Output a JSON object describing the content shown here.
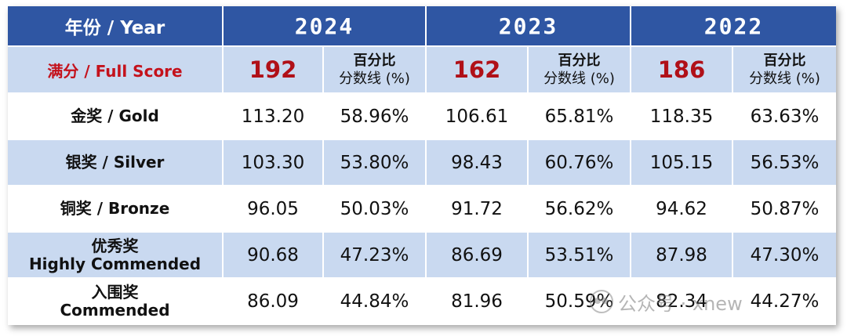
{
  "header": {
    "label": "年份 / Year",
    "years": [
      "2024",
      "2023",
      "2022"
    ]
  },
  "full_score": {
    "label": "满分 / Full Score",
    "values": [
      "192",
      "162",
      "186"
    ],
    "pct_line1": "百分比",
    "pct_line2": "分数线 (%)"
  },
  "rows": [
    {
      "label_1": "金奖 / Gold",
      "label_2": "",
      "cells": [
        "113.20",
        "58.96%",
        "106.61",
        "65.81%",
        "118.35",
        "63.63%"
      ]
    },
    {
      "label_1": "银奖 / Silver",
      "label_2": "",
      "cells": [
        "103.30",
        "53.80%",
        "98.43",
        "60.76%",
        "105.15",
        "56.53%"
      ]
    },
    {
      "label_1": "铜奖 / Bronze",
      "label_2": "",
      "cells": [
        "96.05",
        "50.03%",
        "91.72",
        "56.62%",
        "94.62",
        "50.87%"
      ]
    },
    {
      "label_1": "优秀奖",
      "label_2": "Highly Commended",
      "cells": [
        "90.68",
        "47.23%",
        "86.69",
        "53.51%",
        "87.98",
        "47.30%"
      ]
    },
    {
      "label_1": "入围奖",
      "label_2": "Commended",
      "cells": [
        "86.09",
        "44.84%",
        "81.96",
        "50.59%",
        "82.34",
        "44.27%"
      ]
    }
  ],
  "watermark": {
    "text": "公众号 · xnew",
    "icon": "wechat-icon"
  },
  "colors": {
    "header_bg": "#2f56a3",
    "band_bg": "#c9d9f0",
    "score_red": "#c4121c"
  }
}
